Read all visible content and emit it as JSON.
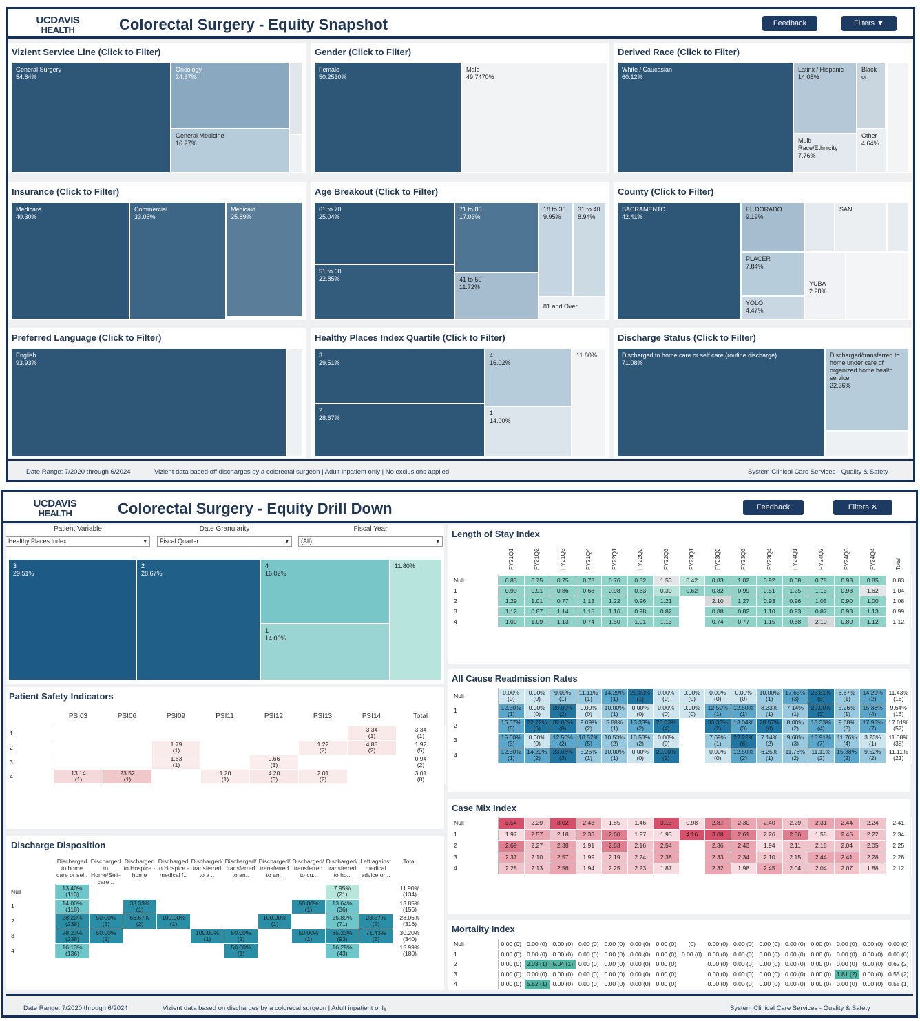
{
  "snapshot": {
    "logo_top": "UCDAVIS",
    "logo_bottom": "HEALTH",
    "title": "Colorectal Surgery - Equity Snapshot",
    "feedback_label": "Feedback",
    "filters_label": "Filters ▼",
    "footer_left": "Date Range: 7/2020 through 6/2024",
    "footer_mid": "Vizient data based off discharges by a colorectal surgeon | Adult inpatient only | No exclusions applied",
    "footer_right": "System Clinical Care Services - Quality & Safety",
    "panels": {
      "service_line": {
        "title": "Vizient Service Line (Click to Filter)",
        "tiles": [
          {
            "label": "General Surgery",
            "value": "54.64%"
          },
          {
            "label": "Oncology",
            "value": "24.37%"
          },
          {
            "label": "General Medicine",
            "value": "16.27%"
          }
        ]
      },
      "gender": {
        "title": "Gender (Click to Filter)",
        "tiles": [
          {
            "label": "Female",
            "value": "50.2530%"
          },
          {
            "label": "Male",
            "value": "49.7470%"
          }
        ]
      },
      "race": {
        "title": "Derived Race (Click to Filter)",
        "tiles": [
          {
            "label": "White / Caucasian",
            "value": "60.12%"
          },
          {
            "label": "Latinx / Hispanic",
            "value": "14.08%"
          },
          {
            "label": "Black or",
            "value": ""
          },
          {
            "label": "Multi Race/Ethnicity",
            "value": "7.76%"
          },
          {
            "label": "Other",
            "value": "4.64%"
          }
        ]
      },
      "insurance": {
        "title": "Insurance (Click to Filter)",
        "tiles": [
          {
            "label": "Medicare",
            "value": "40.30%"
          },
          {
            "label": "Commercial",
            "value": "33.05%"
          },
          {
            "label": "Medicaid",
            "value": "25.89%"
          }
        ]
      },
      "age": {
        "title": "Age Breakout (Click to Filter)",
        "tiles": [
          {
            "label": "61 to 70",
            "value": "25.04%"
          },
          {
            "label": "71 to 80",
            "value": "17.03%"
          },
          {
            "label": "18 to 30",
            "value": "9.95%"
          },
          {
            "label": "31 to 40",
            "value": "8.94%"
          },
          {
            "label": "51 to 60",
            "value": "22.85%"
          },
          {
            "label": "41 to 50",
            "value": "11.72%"
          },
          {
            "label": "81 and Over",
            "value": ""
          }
        ]
      },
      "county": {
        "title": "County (Click to Filter)",
        "tiles": [
          {
            "label": "SACRAMENTO",
            "value": "42.41%"
          },
          {
            "label": "EL DORADO",
            "value": "9.19%"
          },
          {
            "label": "SAN",
            "value": ""
          },
          {
            "label": "PLACER",
            "value": "7.84%"
          },
          {
            "label": "YUBA",
            "value": "2.28%"
          },
          {
            "label": "YOLO",
            "value": "4.47%"
          }
        ]
      },
      "language": {
        "title": "Preferred Language (Click to Filter)",
        "tiles": [
          {
            "label": "English",
            "value": "93.93%"
          }
        ]
      },
      "hpi": {
        "title": "Healthy Places Index Quartile (Click to Filter)",
        "tiles": [
          {
            "label": "3",
            "value": "29.51%"
          },
          {
            "label": "4",
            "value": "16.02%"
          },
          {
            "label": "",
            "value": "11.80%"
          },
          {
            "label": "2",
            "value": "28.67%"
          },
          {
            "label": "1",
            "value": "14.00%"
          }
        ]
      },
      "discharge": {
        "title": "Discharge Status (Click to Filter)",
        "tiles": [
          {
            "label": "Discharged to home care or self care (routine discharge)",
            "value": "71.08%"
          },
          {
            "label": "Discharged/transferred to home under care of organized home health service",
            "value": "22.26%"
          }
        ]
      }
    }
  },
  "drill": {
    "logo_top": "UCDAVIS",
    "logo_bottom": "HEALTH",
    "title": "Colorectal Surgery - Equity Drill Down",
    "feedback_label": "Feedback",
    "filters_label": "Filters ✕",
    "footer_left": "Date Range: 7/2020 through 6/2024",
    "footer_mid": "Vizient data based on discharges by a colorecal surgeon | Adult inpatient only",
    "footer_right": "System Clinical Care Services - Quality & Safety",
    "selectors": [
      {
        "label": "Patient Variable",
        "value": "Healthy Places Index"
      },
      {
        "label": "Date Granularity",
        "value": "Fiscal Quarter"
      },
      {
        "label": "Fiscal Year",
        "value": "(All)"
      }
    ],
    "hpi_tiles": [
      {
        "label": "3",
        "value": "29.51%"
      },
      {
        "label": "2",
        "value": "28.67%"
      },
      {
        "label": "4",
        "value": "16.02%"
      },
      {
        "label": "",
        "value": "11.80%"
      },
      {
        "label": "1",
        "value": "14.00%"
      }
    ],
    "psi": {
      "title": "Patient Safety Indicators",
      "cols": [
        "PSI03",
        "PSI06",
        "PSI09",
        "PSI11",
        "PSI12",
        "PSI13",
        "PSI14",
        "Total"
      ],
      "rows": [
        {
          "label": "1",
          "cells": [
            "",
            "",
            "",
            "",
            "",
            "",
            "3.34\n(1)",
            "3.34\n(1)"
          ]
        },
        {
          "label": "2",
          "cells": [
            "",
            "",
            "1.79\n(1)",
            "",
            "",
            "1.22\n(2)",
            "4.85\n(2)",
            "1.92\n(5)"
          ]
        },
        {
          "label": "3",
          "cells": [
            "",
            "",
            "1.63\n(1)",
            "",
            "0.66\n(1)",
            "",
            "",
            "0.94\n(2)"
          ]
        },
        {
          "label": "4",
          "cells": [
            "13.14\n(1)",
            "23.52\n(1)",
            "",
            "1.20\n(1)",
            "4.20\n(3)",
            "2.01\n(2)",
            "",
            "3.01\n(8)"
          ]
        }
      ]
    },
    "dd": {
      "title": "Discharge Disposition",
      "cols": [
        "Discharged to home care or sel..",
        "Discharged to Home/Self-care ..",
        "Discharged to Hospice - home",
        "Discharged to Hospice - medical f..",
        "Discharged/ transferred to a ..",
        "Discharged/ transferred to an..",
        "Discharged/ transferred to an..",
        "Discharged/ transferred to cu..",
        "Discharged/ transferred to ho..",
        "Left against medical advice or ..",
        "Total"
      ],
      "rows": [
        {
          "label": "Null",
          "cells": [
            "13.40%\n(113)",
            "",
            "",
            "",
            "",
            "",
            "",
            "",
            "7.95%\n(21)",
            "",
            "11.90%\n(134)"
          ]
        },
        {
          "label": "1",
          "cells": [
            "14.00%\n(118)",
            "",
            "33.33%\n(1)",
            "",
            "",
            "",
            "",
            "50.00%\n(1)",
            "13.64%\n(36)",
            "",
            "13.85%\n(156)"
          ]
        },
        {
          "label": "2",
          "cells": [
            "28.23%\n(238)",
            "50.00%\n(1)",
            "66.67%\n(2)",
            "100.00%\n(1)",
            "",
            "",
            "100.00%\n(1)",
            "",
            "26.89%\n(71)",
            "28.57%\n(2)",
            "28.06%\n(316)"
          ]
        },
        {
          "label": "3",
          "cells": [
            "28.23%\n(238)",
            "50.00%\n(1)",
            "",
            "",
            "100.00%\n(1)",
            "50.00%\n(1)",
            "",
            "50.00%\n(1)",
            "35.23%\n(93)",
            "71.43%\n(5)",
            "30.20%\n(340)"
          ]
        },
        {
          "label": "4",
          "cells": [
            "16.13%\n(136)",
            "",
            "",
            "",
            "",
            "50.00%\n(1)",
            "",
            "",
            "16.29%\n(43)",
            "",
            "15.99%\n(180)"
          ]
        }
      ]
    },
    "quarters": [
      "FY21Q1",
      "FY21Q2",
      "FY21Q3",
      "FY21Q4",
      "FY22Q1",
      "FY22Q2",
      "FY22Q3",
      "FY23Q1",
      "FY23Q2",
      "FY23Q3",
      "FY23Q4",
      "FY24Q1",
      "FY24Q2",
      "FY24Q3",
      "FY24Q4",
      "Total"
    ],
    "los": {
      "title": "Length of Stay Index",
      "rows": [
        {
          "label": "Null",
          "cells": [
            "0.83",
            "0.75",
            "0.75",
            "0.78",
            "0.76",
            "0.82",
            "1.53",
            "0.42",
            "0.83",
            "1.02",
            "0.92",
            "0.68",
            "0.78",
            "0.93",
            "0.85",
            "0.83"
          ]
        },
        {
          "label": "1",
          "cells": [
            "0.90",
            "0.91",
            "0.86",
            "0.68",
            "0.98",
            "0.83",
            "0.39",
            "0.62",
            "0.82",
            "0.99",
            "0.51",
            "1.25",
            "1.13",
            "0.98",
            "1.62",
            "1.04"
          ]
        },
        {
          "label": "2",
          "cells": [
            "1.29",
            "1.01",
            "0.77",
            "1.13",
            "1.22",
            "0.96",
            "1.21",
            "",
            "2.10",
            "1.27",
            "0.93",
            "0.96",
            "1.05",
            "0.90",
            "1.00",
            "1.08"
          ]
        },
        {
          "label": "3",
          "cells": [
            "1.12",
            "0.87",
            "1.14",
            "1.15",
            "1.16",
            "0.98",
            "0.82",
            "",
            "0.88",
            "0.82",
            "1.10",
            "0.93",
            "0.87",
            "0.93",
            "1.13",
            "0.99"
          ]
        },
        {
          "label": "4",
          "cells": [
            "1.00",
            "1.09",
            "1.13",
            "0.74",
            "1.50",
            "1.01",
            "1.13",
            "",
            "0.74",
            "0.77",
            "1.15",
            "0.88",
            "2.10",
            "0.80",
            "1.12",
            "1.12"
          ]
        }
      ]
    },
    "readm": {
      "title": "All Cause Readmission Rates",
      "rows": [
        {
          "label": "Null",
          "cells": [
            "0.00%\n(0)",
            "0.00%\n(0)",
            "9.09%\n(1)",
            "11.11%\n(1)",
            "14.29%\n(1)",
            "25.00%\n(1)",
            "0.00%\n(0)",
            "0.00%\n(0)",
            "0.00%\n(0)",
            "0.00%\n(0)",
            "10.00%\n(1)",
            "17.65%\n(3)",
            "23.81%\n(5)",
            "6.67%\n(1)",
            "14.29%\n(2)",
            "11.43%\n(16)"
          ]
        },
        {
          "label": "1",
          "cells": [
            "12.50%\n(1)",
            "0.00%\n(0)",
            "20.00%\n(2)",
            "0.00%\n(0)",
            "10.00%\n(1)",
            "0.00%\n(0)",
            "0.00%\n(0)",
            "0.00%\n(0)",
            "12.50%\n(1)",
            "12.50%\n(1)",
            "8.33%\n(1)",
            "7.14%\n(1)",
            "20.00%\n(3)",
            "5.26%\n(1)",
            "15.38%\n(4)",
            "9.64%\n(16)"
          ]
        },
        {
          "label": "2",
          "cells": [
            "16.67%\n(5)",
            "22.22%\n(6)",
            "32.00%\n(8)",
            "9.09%\n(2)",
            "5.88%\n(1)",
            "13.33%\n(2)",
            "23.53%\n(4)",
            "",
            "33.33%\n(2)",
            "13.04%\n(3)",
            "28.57%\n(8)",
            "8.00%\n(2)",
            "13.33%\n(4)",
            "9.68%\n(3)",
            "17.95%\n(7)",
            "17.01%\n(57)"
          ]
        },
        {
          "label": "3",
          "cells": [
            "15.00%\n(3)",
            "0.00%\n(0)",
            "12.50%\n(2)",
            "18.52%\n(5)",
            "10.53%\n(2)",
            "10.53%\n(2)",
            "0.00%\n(0)",
            "",
            "7.69%\n(1)",
            "22.22%\n(6)",
            "7.14%\n(2)",
            "9.68%\n(3)",
            "15.91%\n(7)",
            "11.76%\n(4)",
            "3.23%\n(1)",
            "11.08%\n(38)"
          ]
        },
        {
          "label": "4",
          "cells": [
            "12.50%\n(1)",
            "14.29%\n(2)",
            "23.08%\n(3)",
            "5.26%\n(1)",
            "10.00%\n(1)",
            "0.00%\n(0)",
            "20.00%\n(2)",
            "",
            "0.00%\n(0)",
            "12.50%\n(2)",
            "6.25%\n(1)",
            "11.76%\n(2)",
            "11.11%\n(2)",
            "15.38%\n(2)",
            "9.52%\n(2)",
            "11.11%\n(21)"
          ]
        }
      ]
    },
    "cmi": {
      "title": "Case Mix Index",
      "rows": [
        {
          "label": "Null",
          "cells": [
            "3.54",
            "2.29",
            "3.02",
            "2.43",
            "1.85",
            "1.46",
            "3.13",
            "0.98",
            "2.87",
            "2.30",
            "2.40",
            "2.29",
            "2.31",
            "2.44",
            "2.24",
            "2.41"
          ]
        },
        {
          "label": "1",
          "cells": [
            "1.97",
            "2.57",
            "2.18",
            "2.33",
            "2.60",
            "1.97",
            "1.93",
            "4.16",
            "3.08",
            "2.61",
            "2.26",
            "2.66",
            "1.58",
            "2.45",
            "2.22",
            "2.34"
          ]
        },
        {
          "label": "2",
          "cells": [
            "2.69",
            "2.27",
            "2.38",
            "1.91",
            "2.83",
            "2.16",
            "2.54",
            "",
            "2.36",
            "2.43",
            "1.94",
            "2.11",
            "2.18",
            "2.04",
            "2.05",
            "2.25"
          ]
        },
        {
          "label": "3",
          "cells": [
            "2.37",
            "2.10",
            "2.57",
            "1.99",
            "2.19",
            "2.24",
            "2.38",
            "",
            "2.33",
            "2.34",
            "2.10",
            "2.15",
            "2.44",
            "2.41",
            "2.28",
            "2.28"
          ]
        },
        {
          "label": "4",
          "cells": [
            "2.28",
            "2.13",
            "2.56",
            "1.94",
            "2.25",
            "2.23",
            "1.87",
            "",
            "2.32",
            "1.98",
            "2.45",
            "2.04",
            "2.04",
            "2.07",
            "1.88",
            "2.12"
          ]
        }
      ]
    },
    "mort": {
      "title": "Mortality Index",
      "rows": [
        {
          "label": "Null",
          "cells": [
            "0.00 (0)",
            "0.00 (0)",
            "0.00 (0)",
            "0.00 (0)",
            "0.00 (0)",
            "0.00 (0)",
            "0.00 (0)",
            "(0)",
            "0.00 (0)",
            "0.00 (0)",
            "0.00 (0)",
            "0.00 (0)",
            "0.00 (0)",
            "0.00 (0)",
            "0.00 (0)",
            "0.00 (0)"
          ]
        },
        {
          "label": "1",
          "cells": [
            "0.00 (0)",
            "0.00 (0)",
            "0.00 (0)",
            "0.00 (0)",
            "0.00 (0)",
            "0.00 (0)",
            "0.00 (0)",
            "0.00 (0)",
            "0.00 (0)",
            "0.00 (0)",
            "0.00 (0)",
            "0.00 (0)",
            "0.00 (0)",
            "0.00 (0)",
            "0.00 (0)",
            "0.00 (0)"
          ]
        },
        {
          "label": "2",
          "cells": [
            "0.00 (0)",
            "2.03 (1)",
            "5.04 (1)",
            "0.00 (0)",
            "0.00 (0)",
            "0.00 (0)",
            "0.00 (0)",
            "",
            "0.00 (0)",
            "0.00 (0)",
            "0.00 (0)",
            "0.00 (0)",
            "0.00 (0)",
            "0.00 (0)",
            "0.00 (0)",
            "0.62 (2)"
          ]
        },
        {
          "label": "3",
          "cells": [
            "0.00 (0)",
            "0.00 (0)",
            "0.00 (0)",
            "0.00 (0)",
            "0.00 (0)",
            "0.00 (0)",
            "0.00 (0)",
            "",
            "0.00 (0)",
            "0.00 (0)",
            "0.00 (0)",
            "0.00 (0)",
            "0.00 (0)",
            "1.81 (2)",
            "0.00 (0)",
            "0.55 (2)"
          ]
        },
        {
          "label": "4",
          "cells": [
            "0.00 (0)",
            "5.52 (1)",
            "0.00 (0)",
            "0.00 (0)",
            "0.00 (0)",
            "0.00 (0)",
            "0.00 (0)",
            "",
            "0.00 (0)",
            "0.00 (0)",
            "0.00 (0)",
            "0.00 (0)",
            "0.00 (0)",
            "0.00 (0)",
            "0.00 (0)",
            "0.55 (1)"
          ]
        }
      ]
    }
  }
}
